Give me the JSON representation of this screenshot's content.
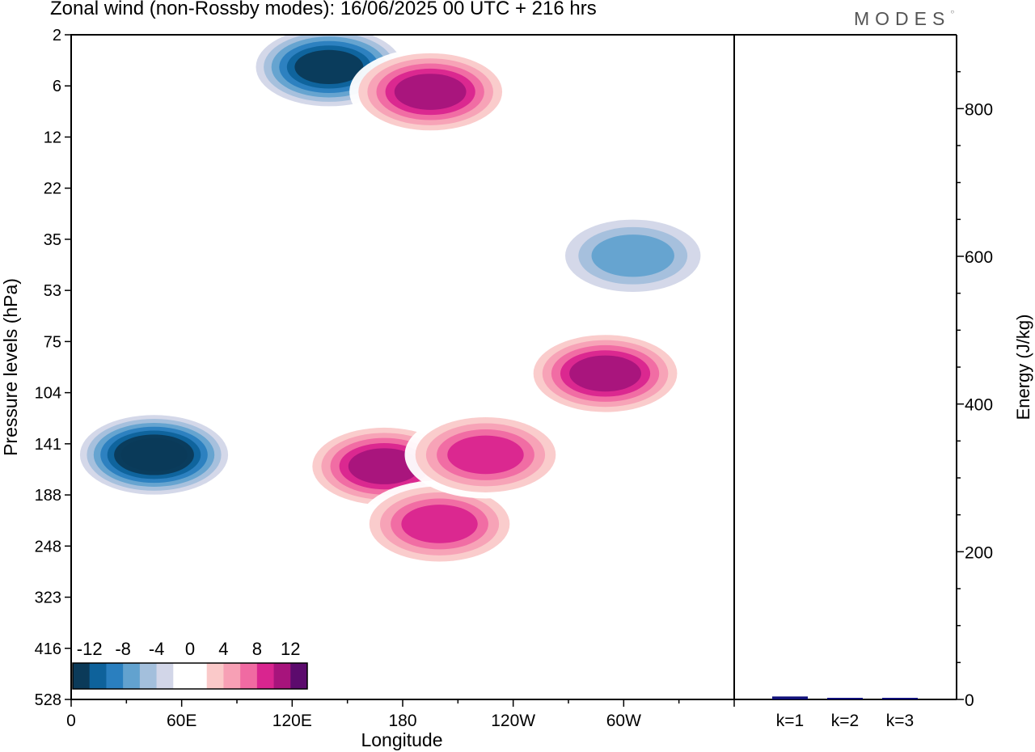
{
  "header": {
    "title": "Zonal wind (non-Rossby modes):  16/06/2025  00 UTC  + 216 hrs",
    "logo": "MODES"
  },
  "chart_data": [
    {
      "type": "heatmap",
      "variable": "Zonal wind (non-Rossby modes)",
      "xlabel": "Longitude",
      "ylabel": "Pressure levels (hPa)",
      "x_ticks": [
        "0",
        "60E",
        "120E",
        "180",
        "120W",
        "60W"
      ],
      "y_ticks": [
        "2",
        "6",
        "12",
        "22",
        "35",
        "53",
        "75",
        "104",
        "141",
        "188",
        "248",
        "323",
        "416",
        "528"
      ],
      "colorbar": {
        "labels": [
          "-12",
          "-8",
          "-4",
          "0",
          "4",
          "8",
          "12"
        ],
        "colors": [
          "#0b3a59",
          "#0e629b",
          "#2a7fbf",
          "#62a2cf",
          "#a3bfdc",
          "#d2d6e8",
          "#ffffff",
          "#ffffff",
          "#fac9c9",
          "#f7a0b5",
          "#f06aa2",
          "#d9258f",
          "#a7147c",
          "#5c0b6d"
        ]
      },
      "features": [
        {
          "name": "negative-core-141hPa",
          "lon": 45,
          "hpa": 150,
          "value": -14
        },
        {
          "name": "positive-180E-141hPa",
          "lon": 170,
          "hpa": 160,
          "value": 10
        },
        {
          "name": "positive-160W-200hPa",
          "lon": 200,
          "hpa": 220,
          "value": 9
        },
        {
          "name": "positive-135W-150hPa",
          "lon": 225,
          "hpa": 150,
          "value": 8
        },
        {
          "name": "positive-70W-90hPa",
          "lon": 290,
          "hpa": 92,
          "value": 10
        },
        {
          "name": "negative-140E-4hPa",
          "lon": 140,
          "hpa": 4,
          "value": -12
        },
        {
          "name": "positive-160W-6hPa",
          "lon": 195,
          "hpa": 6.5,
          "value": 10
        },
        {
          "name": "negative-55W-40hPa",
          "lon": 305,
          "hpa": 40,
          "value": -6
        }
      ]
    },
    {
      "type": "bar",
      "categories": [
        "k=1",
        "k=2",
        "k=3"
      ],
      "values": [
        4,
        2,
        1
      ],
      "ylabel": "Energy (J/kg)",
      "ylim": [
        0,
        900
      ],
      "y_ticks": [
        "0",
        "200",
        "400",
        "600",
        "800"
      ],
      "bar_color": "#10107a"
    }
  ]
}
